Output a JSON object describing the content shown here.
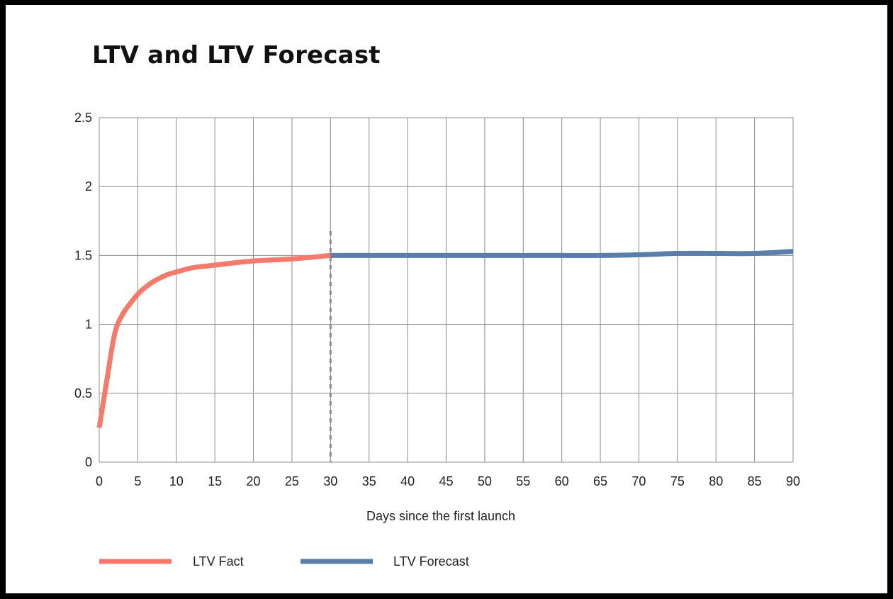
{
  "chart_data": {
    "type": "line",
    "title": "LTV and LTV Forecast",
    "xlabel": "Days since the first launch",
    "ylabel": "",
    "xlim": [
      0,
      90
    ],
    "ylim": [
      0,
      2.5
    ],
    "x_ticks": [
      0,
      5,
      10,
      15,
      20,
      25,
      30,
      35,
      40,
      45,
      50,
      55,
      60,
      65,
      70,
      75,
      80,
      85,
      90
    ],
    "y_ticks": [
      0,
      0.5,
      1,
      1.5,
      2,
      2.5
    ],
    "y_tick_labels": [
      "0",
      "0.5",
      "1",
      "1.5",
      "2",
      "2.5"
    ],
    "grid": true,
    "legend_position": "bottom-left",
    "divider_x": 30,
    "series": [
      {
        "name": "LTV Fact",
        "color": "#f47a6c",
        "x": [
          0,
          1,
          2,
          3,
          4,
          5,
          6,
          7,
          8,
          9,
          10,
          12,
          15,
          20,
          25,
          30
        ],
        "y": [
          0.25,
          0.6,
          0.93,
          1.07,
          1.15,
          1.22,
          1.27,
          1.31,
          1.34,
          1.365,
          1.38,
          1.41,
          1.43,
          1.46,
          1.475,
          1.5
        ]
      },
      {
        "name": "LTV Forecast",
        "color": "#5a7eaa",
        "x": [
          30,
          35,
          40,
          45,
          50,
          55,
          60,
          65,
          70,
          75,
          80,
          85,
          90
        ],
        "y": [
          1.5,
          1.5,
          1.5,
          1.5,
          1.5,
          1.5,
          1.5,
          1.5,
          1.505,
          1.515,
          1.515,
          1.515,
          1.53
        ]
      }
    ]
  }
}
